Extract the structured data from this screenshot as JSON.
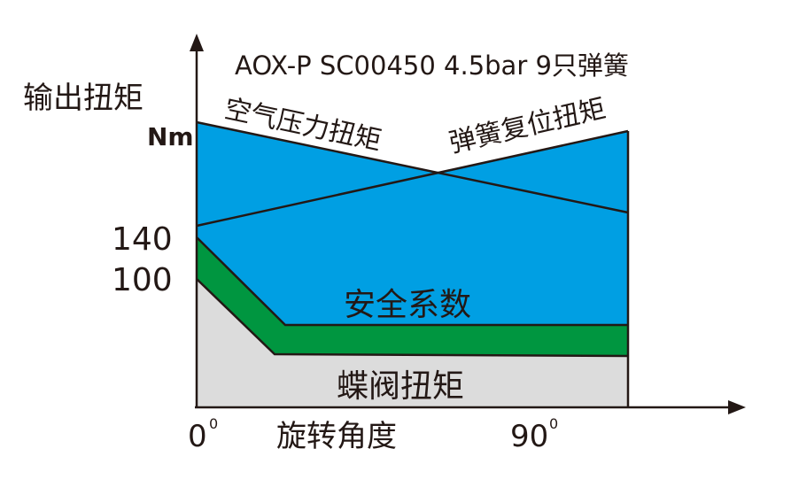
{
  "title": "AOX-P SC00450 4.5bar 9只弹簧",
  "y_axis": {
    "label_line1": "输出扭矩",
    "label_line2": "Nm",
    "ticks": [
      "140",
      "100"
    ]
  },
  "x_axis": {
    "label": "旋转角度",
    "ticks": [
      "0",
      "90"
    ],
    "tick_superscript": "0"
  },
  "regions": {
    "air_torque": "空气压力扭矩",
    "spring_torque": "弹簧复位扭矩",
    "safety_factor": "安全系数",
    "valve_torque": "蝶阀扭矩"
  },
  "colors": {
    "blue": "#009fe3",
    "green": "#009640",
    "gray": "#dcdcdc",
    "line": "#231815"
  }
}
